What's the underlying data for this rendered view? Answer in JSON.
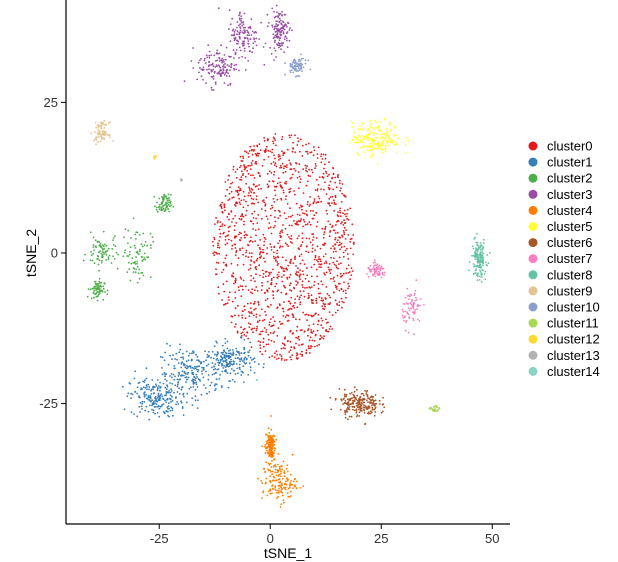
{
  "chart_data": {
    "type": "scatter",
    "xlabel": "tSNE_1",
    "ylabel": "tSNE_2",
    "xlim": [
      -46,
      54
    ],
    "ylim": [
      -45,
      42
    ],
    "x_ticks": [
      -25,
      0,
      25,
      50
    ],
    "y_ticks": [
      -25,
      0,
      25
    ],
    "x_tick_labels": [
      "-25",
      "0",
      "25",
      "50"
    ],
    "y_tick_labels": [
      "-25",
      "0",
      "25"
    ],
    "grid": false,
    "legend_position": "right",
    "series": [
      {
        "name": "cluster0",
        "color": "#e41a1c",
        "n": 1400,
        "clusters": [
          {
            "cx": 3,
            "cy": 1,
            "rx": 16,
            "ry": 19
          }
        ]
      },
      {
        "name": "cluster1",
        "color": "#377eb8",
        "n": 600,
        "clusters": [
          {
            "cx": -26,
            "cy": -24,
            "rx": 5,
            "ry": 3
          },
          {
            "cx": -18,
            "cy": -20,
            "rx": 6,
            "ry": 4
          },
          {
            "cx": -9,
            "cy": -18,
            "rx": 5,
            "ry": 2.5
          }
        ]
      },
      {
        "name": "cluster2",
        "color": "#4daf4a",
        "n": 300,
        "clusters": [
          {
            "cx": -38,
            "cy": 0,
            "rx": 3,
            "ry": 2.5
          },
          {
            "cx": -30,
            "cy": 0,
            "rx": 3,
            "ry": 4
          },
          {
            "cx": -39,
            "cy": -6,
            "rx": 1.5,
            "ry": 1.5
          },
          {
            "cx": -24,
            "cy": 8,
            "rx": 1.5,
            "ry": 1.5
          }
        ]
      },
      {
        "name": "cluster3",
        "color": "#984ea3",
        "n": 400,
        "clusters": [
          {
            "cx": -12,
            "cy": 31,
            "rx": 4,
            "ry": 3
          },
          {
            "cx": -6,
            "cy": 36,
            "rx": 3,
            "ry": 4
          },
          {
            "cx": 2,
            "cy": 37,
            "rx": 2,
            "ry": 3
          }
        ]
      },
      {
        "name": "cluster4",
        "color": "#ff7f00",
        "n": 300,
        "clusters": [
          {
            "cx": 2,
            "cy": -38,
            "rx": 3.5,
            "ry": 3
          },
          {
            "cx": 0,
            "cy": -32,
            "rx": 1,
            "ry": 2.5
          }
        ]
      },
      {
        "name": "cluster5",
        "color": "#ffff33",
        "n": 220,
        "clusters": [
          {
            "cx": 24,
            "cy": 19,
            "rx": 5,
            "ry": 2.5
          }
        ]
      },
      {
        "name": "cluster6",
        "color": "#a65628",
        "n": 220,
        "clusters": [
          {
            "cx": 20,
            "cy": -25,
            "rx": 4,
            "ry": 2
          }
        ]
      },
      {
        "name": "cluster7",
        "color": "#f781bf",
        "n": 150,
        "clusters": [
          {
            "cx": 32,
            "cy": -9,
            "rx": 2,
            "ry": 3
          },
          {
            "cx": 24,
            "cy": -3,
            "rx": 2,
            "ry": 1
          }
        ]
      },
      {
        "name": "cluster8",
        "color": "#66c2a5",
        "n": 150,
        "clusters": [
          {
            "cx": 47,
            "cy": -1,
            "rx": 1.5,
            "ry": 3
          }
        ]
      },
      {
        "name": "cluster9",
        "color": "#e5c494",
        "n": 80,
        "clusters": [
          {
            "cx": -38,
            "cy": 20,
            "rx": 1.5,
            "ry": 1.5
          }
        ]
      },
      {
        "name": "cluster10",
        "color": "#8da0cb",
        "n": 80,
        "clusters": [
          {
            "cx": 6,
            "cy": 31,
            "rx": 2,
            "ry": 1.3
          }
        ]
      },
      {
        "name": "cluster11",
        "color": "#a6d854",
        "n": 25,
        "clusters": [
          {
            "cx": 37,
            "cy": -26,
            "rx": 0.9,
            "ry": 0.6
          }
        ]
      },
      {
        "name": "cluster12",
        "color": "#ffd92f",
        "n": 8,
        "clusters": [
          {
            "cx": -26,
            "cy": 16,
            "rx": 0.4,
            "ry": 0.4
          }
        ]
      },
      {
        "name": "cluster13",
        "color": "#b3b3b3",
        "n": 4,
        "clusters": [
          {
            "cx": -20,
            "cy": 12,
            "rx": 0.3,
            "ry": 0.3
          }
        ]
      },
      {
        "name": "cluster14",
        "color": "#8dd3c7",
        "n": 3,
        "clusters": [
          {
            "cx": -3,
            "cy": -21,
            "rx": 0.3,
            "ry": 0.3
          }
        ]
      }
    ]
  }
}
